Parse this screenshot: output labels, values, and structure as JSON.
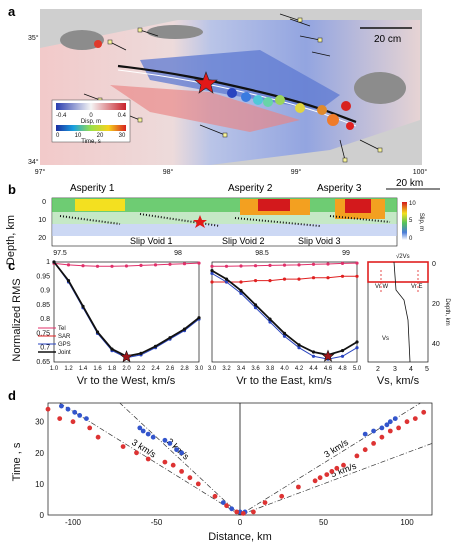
{
  "figure": {
    "panels": [
      {
        "label": "a",
        "lat_ticks": [
          "35°",
          "34°"
        ],
        "lon_ticks": [
          "97°",
          "98°",
          "99°",
          "100°"
        ],
        "scale_label": "20 cm",
        "disp_colorbar": {
          "ticks": [
            "-0.4",
            "0",
            "0.4"
          ],
          "label": "Disp, m"
        },
        "time_colorbar": {
          "ticks": [
            "0",
            "10",
            "20",
            "30"
          ],
          "label": "Time, s"
        }
      },
      {
        "label": "b",
        "ylabel": "Depth, km",
        "y_ticks": [
          "0",
          "10",
          "20"
        ],
        "x_ticks": [
          "98",
          "99"
        ],
        "x_tick_left": "97.5",
        "x_tick_mid": "98.5",
        "scale_label": "20 km",
        "asperities": [
          "Asperity 1",
          "Asperity 2",
          "Asperity 3"
        ],
        "slip_voids": [
          "Slip Void 1",
          "Slip Void 2",
          "Slip Void 3"
        ],
        "colorbar": {
          "ticks": [
            "0",
            "5",
            "10"
          ],
          "label": "Slip, m"
        }
      },
      {
        "label": "c",
        "ylabel": "Normalized RMS",
        "y_ticks": [
          "1",
          "0.95",
          "0.9",
          "0.85",
          "0.8",
          "0.75",
          "0.7",
          "0.65"
        ],
        "legend": [
          "Tel",
          "SAR",
          "GPS",
          "Joint"
        ],
        "west": {
          "xlabel": "Vr to the West, km/s",
          "x_ticks": [
            "1.0",
            "1.2",
            "1.4",
            "1.6",
            "1.8",
            "2.0",
            "2.2",
            "2.4",
            "2.6",
            "2.8",
            "3.0"
          ]
        },
        "east": {
          "xlabel": "Vr to the East, km/s",
          "x_ticks": [
            "3.0",
            "3.2",
            "3.4",
            "3.6",
            "3.8",
            "4.0",
            "4.2",
            "4.4",
            "4.6",
            "4.8",
            "5.0"
          ]
        },
        "vs": {
          "xlabel": "Vs, km/s",
          "x_ticks": [
            "2",
            "3",
            "4",
            "5"
          ],
          "y_ticks": [
            "0",
            "20",
            "40"
          ],
          "ylabel": "Depth, km",
          "top_label": "√2Vs",
          "labels": [
            "Vr W",
            "Vr E",
            "Vs"
          ]
        }
      },
      {
        "label": "d",
        "ylabel": "Time , s",
        "xlabel": "Distance, km",
        "x_ticks": [
          "-100",
          "-50",
          "0",
          "50",
          "100"
        ],
        "y_ticks": [
          "0",
          "10",
          "20",
          "30"
        ],
        "line_labels": [
          "2 km/s",
          "3 km/s",
          "3 km/s",
          "5 km/s"
        ]
      }
    ]
  },
  "chart_data": [
    {
      "type": "line",
      "title": "",
      "xlabel": "Vr to the West, km/s",
      "ylabel": "Normalized RMS",
      "ylim": [
        0.65,
        1.0
      ],
      "xlim": [
        1.0,
        3.0
      ],
      "series": [
        {
          "name": "Tel",
          "x": [
            1.0,
            1.2,
            1.4,
            1.6,
            1.8,
            2.0,
            2.2,
            2.4,
            2.6,
            2.8,
            3.0
          ],
          "values": [
            0.995,
            0.99,
            0.987,
            0.985,
            0.985,
            0.986,
            0.988,
            0.99,
            0.992,
            0.994,
            0.996
          ]
        },
        {
          "name": "GPS",
          "x": [
            1.0,
            1.2,
            1.4,
            1.6,
            1.8,
            2.0,
            2.2,
            2.4,
            2.6,
            2.8,
            3.0
          ],
          "values": [
            1.0,
            0.93,
            0.84,
            0.75,
            0.69,
            0.665,
            0.675,
            0.7,
            0.73,
            0.76,
            0.8
          ]
        },
        {
          "name": "Joint",
          "x": [
            1.0,
            1.2,
            1.4,
            1.6,
            1.8,
            2.0,
            2.2,
            2.4,
            2.6,
            2.8,
            3.0
          ],
          "values": [
            1.0,
            0.935,
            0.845,
            0.755,
            0.695,
            0.67,
            0.68,
            0.705,
            0.735,
            0.765,
            0.805
          ]
        }
      ],
      "best": {
        "x": 2.0,
        "y": 0.668
      }
    },
    {
      "type": "line",
      "title": "",
      "xlabel": "Vr to the East, km/s",
      "ylabel": "",
      "ylim": [
        0.65,
        1.0
      ],
      "xlim": [
        3.0,
        5.0
      ],
      "series": [
        {
          "name": "Tel",
          "x": [
            3.0,
            3.2,
            3.4,
            3.6,
            3.8,
            4.0,
            4.2,
            4.4,
            4.6,
            4.8,
            5.0
          ],
          "values": [
            0.985,
            0.985,
            0.986,
            0.987,
            0.988,
            0.989,
            0.99,
            0.992,
            0.993,
            0.995,
            0.996
          ]
        },
        {
          "name": "SAR",
          "x": [
            3.0,
            3.2,
            3.4,
            3.6,
            3.8,
            4.0,
            4.2,
            4.4,
            4.6,
            4.8,
            5.0
          ],
          "values": [
            0.93,
            0.93,
            0.93,
            0.935,
            0.935,
            0.94,
            0.94,
            0.945,
            0.945,
            0.95,
            0.95
          ]
        },
        {
          "name": "GPS",
          "x": [
            3.0,
            3.2,
            3.4,
            3.6,
            3.8,
            4.0,
            4.2,
            4.4,
            4.6,
            4.8,
            5.0
          ],
          "values": [
            0.96,
            0.93,
            0.89,
            0.84,
            0.79,
            0.74,
            0.7,
            0.67,
            0.66,
            0.67,
            0.7
          ]
        },
        {
          "name": "Joint",
          "x": [
            3.0,
            3.2,
            3.4,
            3.6,
            3.8,
            4.0,
            4.2,
            4.4,
            4.6,
            4.8,
            5.0
          ],
          "values": [
            0.97,
            0.94,
            0.9,
            0.85,
            0.8,
            0.75,
            0.71,
            0.685,
            0.675,
            0.69,
            0.72
          ]
        }
      ],
      "best": {
        "x": 4.6,
        "y": 0.67
      }
    },
    {
      "type": "scatter",
      "title": "",
      "xlabel": "Distance, km",
      "ylabel": "Time , s",
      "xlim": [
        -115,
        115
      ],
      "ylim": [
        0,
        36
      ],
      "series": [
        {
          "name": "",
          "color": "#3355cc",
          "x": [
            -107,
            -103,
            -99,
            -96,
            -92,
            -60,
            -58,
            -55,
            -52,
            -45,
            -42,
            -38,
            -35,
            -10,
            -5,
            0,
            3,
            75,
            80,
            85,
            88,
            90,
            93
          ],
          "values": [
            35,
            34,
            33,
            32,
            31,
            28,
            27,
            26,
            25,
            24,
            23,
            21,
            20,
            4,
            2,
            1,
            1,
            26,
            27,
            28,
            29,
            30,
            31
          ]
        },
        {
          "name": "",
          "color": "#dd3333",
          "x": [
            -115,
            -108,
            -100,
            -90,
            -85,
            -70,
            -62,
            -55,
            -45,
            -40,
            -35,
            -30,
            -25,
            -15,
            -8,
            -2,
            2,
            8,
            15,
            25,
            35,
            45,
            48,
            52,
            55,
            58,
            62,
            70,
            75,
            80,
            85,
            90,
            95,
            100,
            105,
            110
          ],
          "values": [
            34,
            31,
            30,
            28,
            25,
            22,
            20,
            18,
            17,
            16,
            14,
            12,
            10,
            6,
            3,
            1,
            0.5,
            1,
            4,
            6,
            9,
            11,
            12,
            13,
            14,
            15,
            16,
            19,
            21,
            23,
            25,
            27,
            28,
            30,
            31,
            33
          ]
        }
      ],
      "guide_lines": [
        {
          "label": "2 km/s",
          "slope": 0.5,
          "side": "west"
        },
        {
          "label": "3 km/s",
          "slope": 0.333,
          "side": "west"
        },
        {
          "label": "3 km/s",
          "slope": 0.333,
          "side": "east"
        },
        {
          "label": "5 km/s",
          "slope": 0.2,
          "side": "east"
        }
      ]
    }
  ]
}
